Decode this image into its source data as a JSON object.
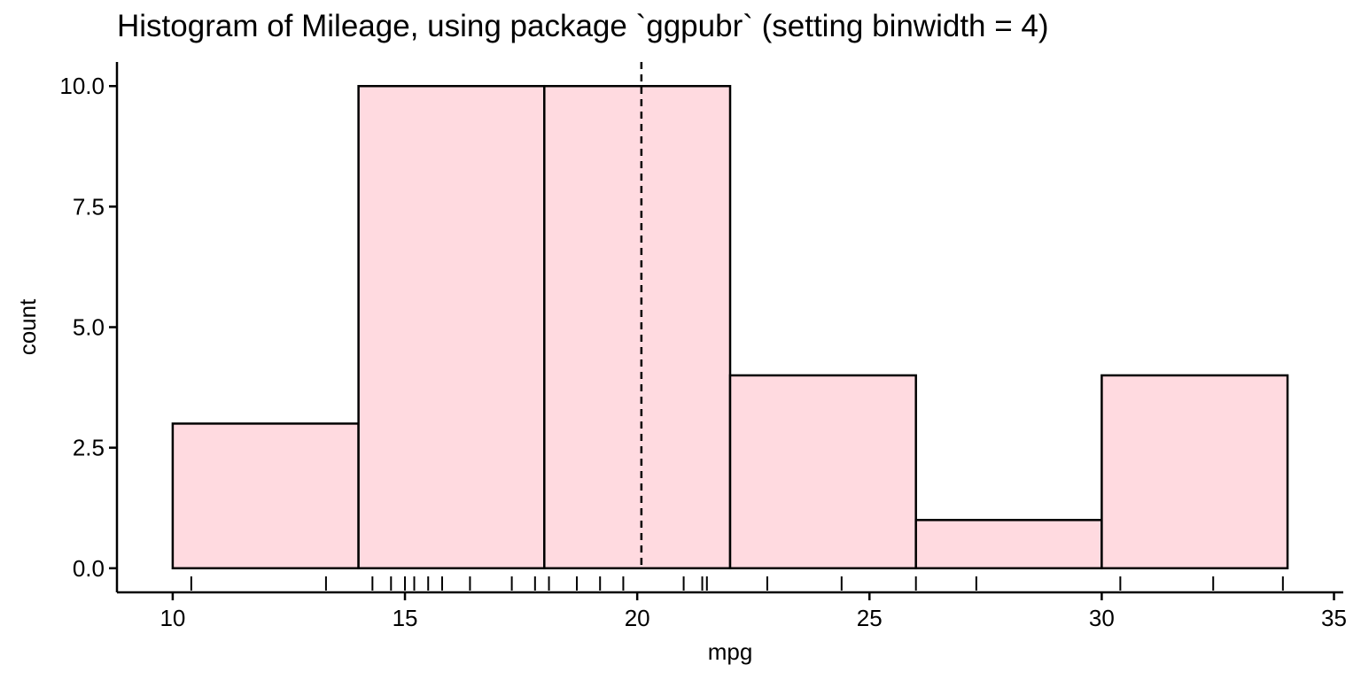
{
  "chart_data": {
    "type": "bar",
    "title": "Histogram of Mileage, using package `ggpubr` (setting binwidth = 4)",
    "xlabel": "mpg",
    "ylabel": "count",
    "xlim": [
      8.8,
      35.2
    ],
    "ylim": [
      -0.5,
      10.5
    ],
    "xticks": [
      10,
      15,
      20,
      25,
      30,
      35
    ],
    "xtick_labels": [
      "10",
      "15",
      "20",
      "25",
      "30",
      "35"
    ],
    "yticks": [
      0,
      2.5,
      5,
      7.5,
      10
    ],
    "ytick_labels": [
      "0.0",
      "2.5",
      "5.0",
      "7.5",
      "10.0"
    ],
    "binwidth": 4,
    "bins": [
      {
        "start": 10,
        "end": 14,
        "count": 3
      },
      {
        "start": 14,
        "end": 18,
        "count": 10
      },
      {
        "start": 18,
        "end": 22,
        "count": 10
      },
      {
        "start": 22,
        "end": 26,
        "count": 4
      },
      {
        "start": 26,
        "end": 30,
        "count": 1
      },
      {
        "start": 30,
        "end": 34,
        "count": 4
      }
    ],
    "mean_line": 20.09,
    "rug": [
      10.4,
      13.3,
      14.3,
      14.7,
      15.0,
      15.2,
      15.5,
      15.8,
      16.4,
      17.3,
      17.8,
      18.1,
      18.7,
      19.2,
      19.7,
      21.0,
      21.4,
      21.5,
      22.8,
      24.4,
      26.0,
      27.3,
      30.4,
      32.4,
      33.9
    ],
    "grid": false,
    "colors": {
      "fill": "#ffdae0",
      "stroke": "#000000",
      "mean_line": "#000000"
    }
  }
}
